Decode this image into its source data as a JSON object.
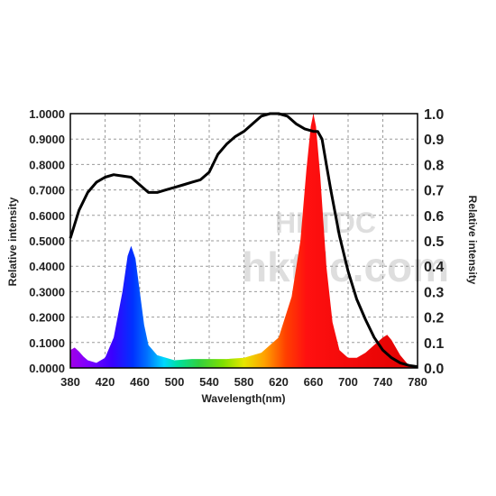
{
  "chart_data": {
    "type": "area",
    "title": "",
    "xlabel": "Wavelength(nm)",
    "ylabel": "Relative intensity",
    "ylabel_right": "Relative intensity",
    "xlim": [
      380,
      780
    ],
    "ylim": [
      0,
      1
    ],
    "grid": true,
    "x_ticks": [
      "380",
      "420",
      "460",
      "500",
      "540",
      "580",
      "620",
      "660",
      "700",
      "740",
      "780"
    ],
    "y_ticks_left": [
      "0.0000",
      "0.1000",
      "0.2000",
      "0.3000",
      "0.4000",
      "0.5000",
      "0.6000",
      "0.7000",
      "0.8000",
      "0.9000",
      "1.0000"
    ],
    "y_ticks_right": [
      "0.0",
      "0.1",
      "0.2",
      "0.3",
      "0.4",
      "0.5",
      "0.6",
      "0.7",
      "0.8",
      "0.9",
      "1.0"
    ],
    "watermark": {
      "line1": "HKTDC",
      "line2": "hktdc.com"
    },
    "series": [
      {
        "style": "spectrum-fill",
        "points": [
          [
            380,
            0.07
          ],
          [
            385,
            0.08
          ],
          [
            390,
            0.065
          ],
          [
            395,
            0.045
          ],
          [
            400,
            0.03
          ],
          [
            410,
            0.02
          ],
          [
            420,
            0.04
          ],
          [
            430,
            0.12
          ],
          [
            440,
            0.3
          ],
          [
            446,
            0.44
          ],
          [
            450,
            0.48
          ],
          [
            455,
            0.43
          ],
          [
            460,
            0.3
          ],
          [
            465,
            0.17
          ],
          [
            470,
            0.09
          ],
          [
            480,
            0.05
          ],
          [
            500,
            0.03
          ],
          [
            520,
            0.035
          ],
          [
            540,
            0.035
          ],
          [
            560,
            0.035
          ],
          [
            580,
            0.04
          ],
          [
            600,
            0.06
          ],
          [
            620,
            0.12
          ],
          [
            635,
            0.28
          ],
          [
            645,
            0.5
          ],
          [
            652,
            0.78
          ],
          [
            657,
            0.95
          ],
          [
            660,
            1.0
          ],
          [
            663,
            0.95
          ],
          [
            668,
            0.75
          ],
          [
            675,
            0.4
          ],
          [
            682,
            0.18
          ],
          [
            690,
            0.07
          ],
          [
            700,
            0.04
          ],
          [
            710,
            0.04
          ],
          [
            720,
            0.06
          ],
          [
            730,
            0.09
          ],
          [
            740,
            0.12
          ],
          [
            745,
            0.13
          ],
          [
            750,
            0.11
          ],
          [
            760,
            0.05
          ],
          [
            770,
            0.01
          ],
          [
            780,
            0.0
          ]
        ]
      },
      {
        "style": "line",
        "color": "#000000",
        "points": [
          [
            380,
            0.51
          ],
          [
            390,
            0.62
          ],
          [
            400,
            0.69
          ],
          [
            410,
            0.73
          ],
          [
            420,
            0.75
          ],
          [
            430,
            0.76
          ],
          [
            440,
            0.755
          ],
          [
            450,
            0.75
          ],
          [
            460,
            0.72
          ],
          [
            470,
            0.69
          ],
          [
            480,
            0.69
          ],
          [
            490,
            0.7
          ],
          [
            500,
            0.71
          ],
          [
            510,
            0.72
          ],
          [
            520,
            0.73
          ],
          [
            530,
            0.74
          ],
          [
            540,
            0.77
          ],
          [
            550,
            0.84
          ],
          [
            560,
            0.88
          ],
          [
            570,
            0.91
          ],
          [
            580,
            0.93
          ],
          [
            590,
            0.96
          ],
          [
            600,
            0.99
          ],
          [
            610,
            1.0
          ],
          [
            620,
            1.0
          ],
          [
            630,
            0.99
          ],
          [
            640,
            0.96
          ],
          [
            650,
            0.94
          ],
          [
            660,
            0.93
          ],
          [
            665,
            0.93
          ],
          [
            670,
            0.9
          ],
          [
            675,
            0.8
          ],
          [
            680,
            0.7
          ],
          [
            690,
            0.52
          ],
          [
            700,
            0.38
          ],
          [
            710,
            0.27
          ],
          [
            720,
            0.19
          ],
          [
            730,
            0.12
          ],
          [
            740,
            0.07
          ],
          [
            750,
            0.04
          ],
          [
            760,
            0.02
          ],
          [
            770,
            0.01
          ],
          [
            780,
            0.005
          ]
        ]
      }
    ]
  }
}
